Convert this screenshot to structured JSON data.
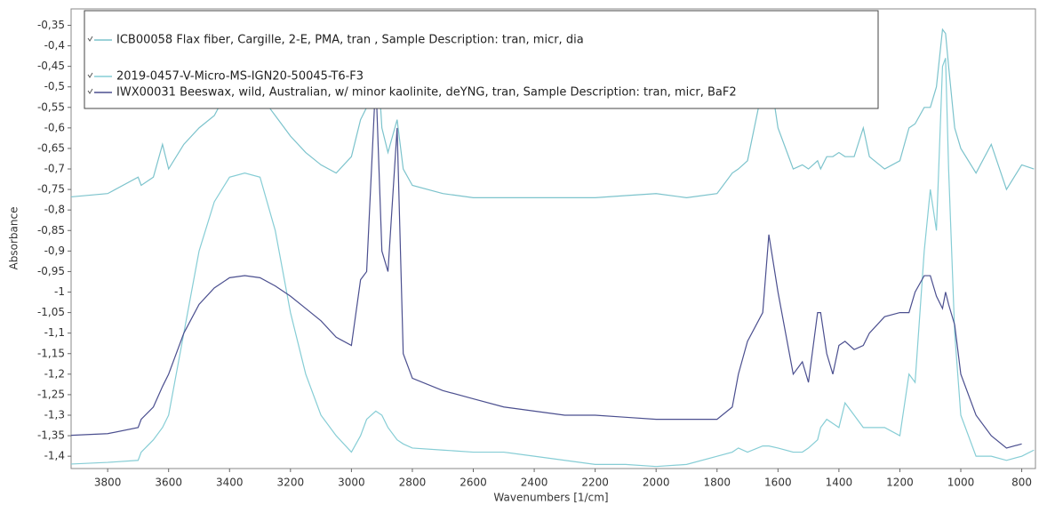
{
  "chart_data": {
    "type": "line",
    "xlabel": "Wavenumbers [1/cm]",
    "ylabel": "Absorbance",
    "xlim": [
      3920,
      755
    ],
    "xticks": [
      3800,
      3600,
      3400,
      3200,
      3000,
      2800,
      2600,
      2400,
      2200,
      2000,
      1800,
      1600,
      1400,
      1200,
      1000,
      800
    ],
    "ylim": [
      -1.43,
      -0.31
    ],
    "yticks": [
      {
        "value": -0.35,
        "label": "-0,35"
      },
      {
        "value": -0.4,
        "label": "-0,4"
      },
      {
        "value": -0.45,
        "label": "-0,45"
      },
      {
        "value": -0.5,
        "label": "-0,5"
      },
      {
        "value": -0.55,
        "label": "-0,55"
      },
      {
        "value": -0.6,
        "label": "-0,6"
      },
      {
        "value": -0.65,
        "label": "-0,65"
      },
      {
        "value": -0.7,
        "label": "-0,7"
      },
      {
        "value": -0.75,
        "label": "-0,75"
      },
      {
        "value": -0.8,
        "label": "-0,8"
      },
      {
        "value": -0.85,
        "label": "-0,85"
      },
      {
        "value": -0.9,
        "label": "-0,9"
      },
      {
        "value": -0.95,
        "label": "-0,95"
      },
      {
        "value": -1,
        "label": "-1"
      },
      {
        "value": -1.05,
        "label": "-1,05"
      },
      {
        "value": -1.1,
        "label": "-1,1"
      },
      {
        "value": -1.15,
        "label": "-1,15"
      },
      {
        "value": -1.2,
        "label": "-1,2"
      },
      {
        "value": -1.25,
        "label": "-1,25"
      },
      {
        "value": -1.3,
        "label": "-1,3"
      },
      {
        "value": -1.35,
        "label": "-1,35"
      },
      {
        "value": -1.4,
        "label": "-1,4"
      }
    ],
    "x": [
      3950,
      3800,
      3700,
      3690,
      3650,
      3620,
      3600,
      3550,
      3500,
      3450,
      3400,
      3350,
      3300,
      3250,
      3200,
      3150,
      3100,
      3050,
      3000,
      2970,
      2950,
      2920,
      2900,
      2880,
      2850,
      2830,
      2800,
      2700,
      2600,
      2500,
      2400,
      2300,
      2200,
      2100,
      2000,
      1900,
      1800,
      1750,
      1730,
      1700,
      1650,
      1630,
      1600,
      1550,
      1520,
      1500,
      1470,
      1460,
      1440,
      1420,
      1400,
      1380,
      1350,
      1320,
      1300,
      1250,
      1200,
      1170,
      1150,
      1120,
      1100,
      1080,
      1060,
      1050,
      1040,
      1020,
      1000,
      950,
      900,
      850,
      800,
      760
    ],
    "series": [
      {
        "name": "ICB00058 Flax fiber, Cargille, 2-E, PMA, tran , Sample Description: tran, micr, dia",
        "color": "#7cc3cc",
        "values": [
          -0.77,
          -0.76,
          -0.72,
          -0.74,
          -0.72,
          -0.64,
          -0.7,
          -0.64,
          -0.6,
          -0.57,
          -0.5,
          -0.49,
          -0.52,
          -0.57,
          -0.62,
          -0.66,
          -0.69,
          -0.71,
          -0.67,
          -0.58,
          -0.55,
          -0.36,
          -0.6,
          -0.66,
          -0.58,
          -0.7,
          -0.74,
          -0.76,
          -0.77,
          -0.77,
          -0.77,
          -0.77,
          -0.77,
          -0.765,
          -0.76,
          -0.77,
          -0.76,
          -0.71,
          -0.7,
          -0.68,
          -0.5,
          -0.45,
          -0.6,
          -0.7,
          -0.69,
          -0.7,
          -0.68,
          -0.7,
          -0.67,
          -0.67,
          -0.66,
          -0.67,
          -0.67,
          -0.6,
          -0.67,
          -0.7,
          -0.68,
          -0.6,
          -0.59,
          -0.55,
          -0.55,
          -0.5,
          -0.36,
          -0.37,
          -0.45,
          -0.6,
          -0.65,
          -0.71,
          -0.64,
          -0.75,
          -0.69,
          -0.7
        ]
      },
      {
        "name": "2019-0457-V-Micro-MS-IGN20-50045-T6-F3",
        "color": "#86cdd5",
        "values": [
          -1.42,
          -1.415,
          -1.41,
          -1.39,
          -1.36,
          -1.33,
          -1.3,
          -1.1,
          -0.9,
          -0.78,
          -0.72,
          -0.71,
          -0.72,
          -0.85,
          -1.05,
          -1.2,
          -1.3,
          -1.35,
          -1.39,
          -1.35,
          -1.31,
          -1.29,
          -1.3,
          -1.33,
          -1.36,
          -1.37,
          -1.38,
          -1.385,
          -1.39,
          -1.39,
          -1.4,
          -1.41,
          -1.42,
          -1.42,
          -1.425,
          -1.42,
          -1.4,
          -1.39,
          -1.38,
          -1.39,
          -1.375,
          -1.375,
          -1.38,
          -1.39,
          -1.39,
          -1.38,
          -1.36,
          -1.33,
          -1.31,
          -1.32,
          -1.33,
          -1.27,
          -1.3,
          -1.33,
          -1.33,
          -1.33,
          -1.35,
          -1.2,
          -1.22,
          -0.9,
          -0.75,
          -0.85,
          -0.45,
          -0.43,
          -0.7,
          -1.1,
          -1.3,
          -1.4,
          -1.4,
          -1.41,
          -1.4,
          -1.385
        ]
      },
      {
        "name": "IWX00031 Beeswax, wild, Australian, w/ minor kaolinite, deYNG, tran, Sample Description: tran, micr, BaF2",
        "color": "#4b4f8f",
        "values": [
          -1.35,
          -1.345,
          -1.33,
          -1.31,
          -1.28,
          -1.23,
          -1.2,
          -1.1,
          -1.03,
          -0.99,
          -0.965,
          -0.96,
          -0.965,
          -0.985,
          -1.01,
          -1.04,
          -1.07,
          -1.11,
          -1.13,
          -0.97,
          -0.95,
          -0.48,
          -0.9,
          -0.95,
          -0.6,
          -1.15,
          -1.21,
          -1.24,
          -1.26,
          -1.28,
          -1.29,
          -1.3,
          -1.3,
          -1.305,
          -1.31,
          -1.31,
          -1.31,
          -1.28,
          -1.2,
          -1.12,
          -1.05,
          -0.86,
          -1.0,
          -1.2,
          -1.17,
          -1.22,
          -1.05,
          -1.05,
          -1.15,
          -1.2,
          -1.13,
          -1.12,
          -1.14,
          -1.13,
          -1.1,
          -1.06,
          -1.05,
          -1.05,
          -1.0,
          -0.96,
          -0.96,
          -1.01,
          -1.04,
          -1.0,
          -1.03,
          -1.08,
          -1.2,
          -1.3,
          -1.35,
          -1.38,
          -1.37,
          null
        ]
      }
    ]
  }
}
